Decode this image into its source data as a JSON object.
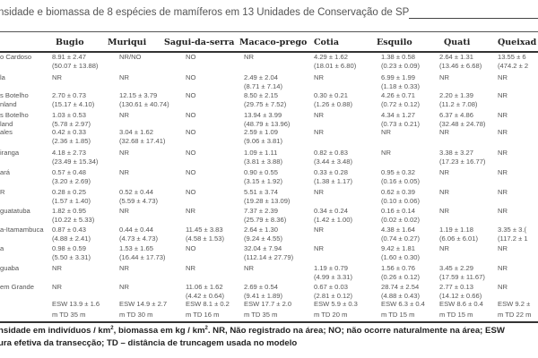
{
  "title": "nsidade e biomassa de 8 espécies de mamíferos  em 13 Unidades de Conservação de SP",
  "table": {
    "headers": [
      "Bugio",
      "Muriqui",
      "Sagui-da-serra",
      "Macaco-prego",
      "Cotia",
      "Esquilo",
      "Quati",
      "Queixad"
    ],
    "rows": [
      {
        "name": "o Cardoso",
        "cells": [
          [
            "8.91 ± 2.47",
            "(50.07 ± 13.88)"
          ],
          [
            "NR/NO"
          ],
          [
            "NO"
          ],
          [
            "NR"
          ],
          [
            "4.29 ± 1.62",
            "(18.01 ± 6.80)"
          ],
          [
            "1.38 ± 0.58",
            "(0.23 ± 0.09)"
          ],
          [
            "2.64 ± 1.31",
            "(13.46 ± 6.68)"
          ],
          [
            "13.55 ± 6",
            "(474.2 ± 2"
          ]
        ]
      },
      {
        "name": "la",
        "cells": [
          [
            "NR"
          ],
          [
            "NR"
          ],
          [
            "NO"
          ],
          [
            "2.49 ± 2.04",
            "(8.71 ± 7.14)"
          ],
          [
            "NR"
          ],
          [
            "6.99 ± 1.99",
            "(1.18 ± 0.33)"
          ],
          [
            "NR"
          ],
          [
            "NR"
          ]
        ]
      },
      {
        "name": "s Botelho\nnland",
        "cells": [
          [
            "2.70 ± 0.73",
            "(15.17 ± 4.10)"
          ],
          [
            "12.15 ± 3.79",
            "(130.61 ± 40.74)"
          ],
          [
            "NO"
          ],
          [
            "8.50 ± 2.15",
            "(29.75 ± 7.52)"
          ],
          [
            "0.30 ± 0.21",
            "(1.26 ± 0.88)"
          ],
          [
            "4.26 ± 0.71",
            "(0.72 ± 0.12)"
          ],
          [
            "2.20 ± 1.39",
            "(11.2 ± 7.08)"
          ],
          [
            "NR"
          ]
        ]
      },
      {
        "name": "s Botelho\nland",
        "cells": [
          [
            "1.03 ± 0.53",
            "(5.78 ± 2.97)"
          ],
          [
            "NR"
          ],
          [
            "NO"
          ],
          [
            "13.94 ± 3.99",
            "(48.79 ± 13.96)"
          ],
          [
            "NR"
          ],
          [
            "4.34 ± 1.27",
            "(0.73 ± 0.21)"
          ],
          [
            "6.37 ± 4.86",
            "(32.48 ± 24.78)"
          ],
          [
            "NR"
          ]
        ]
      },
      {
        "name": "ales",
        "cells": [
          [
            "0.42 ± 0.33",
            "(2.36 ± 1.85)"
          ],
          [
            "3.04 ± 1.62",
            "(32.68 ± 17.41)"
          ],
          [
            "NO"
          ],
          [
            "2.59 ± 1.09",
            "(9.06 ± 3.81)"
          ],
          [
            "NR"
          ],
          [
            "NR"
          ],
          [
            "NR"
          ],
          [
            "NR"
          ]
        ]
      },
      {
        "name": "iranga",
        "cells": [
          [
            "4.18 ± 2.73",
            "(23.49 ± 15.34)"
          ],
          [
            "NR"
          ],
          [
            "NO"
          ],
          [
            "1.09 ± 1.11",
            "(3.81 ± 3.88)"
          ],
          [
            "0.82 ± 0.83",
            "(3.44 ± 3.48)"
          ],
          [
            "NR"
          ],
          [
            "3.38 ± 3.27",
            "(17.23 ± 16.77)"
          ],
          [
            "NR"
          ]
        ]
      },
      {
        "name": "ará",
        "cells": [
          [
            "0.57 ± 0.48",
            "(3.20 ± 2.69)"
          ],
          [
            "NR"
          ],
          [
            "NO"
          ],
          [
            "0.90 ± 0.55",
            "(3.15 ± 1.92)"
          ],
          [
            "0.33 ± 0.28",
            "(1.38 ± 1.17)"
          ],
          [
            "0.95 ± 0.32",
            "(0.16 ± 0.05)"
          ],
          [
            "NR"
          ],
          [
            "NR"
          ]
        ]
      },
      {
        "name": "R",
        "cells": [
          [
            "0.28 ± 0.25",
            "(1.57 ± 1.40)"
          ],
          [
            "0.52 ± 0.44",
            "(5.59 ± 4.73)"
          ],
          [
            "NO"
          ],
          [
            "5.51 ± 3.74",
            "(19.28 ± 13.09)"
          ],
          [
            "NR"
          ],
          [
            "0.62 ± 0.39",
            "(0.10 ± 0.06)"
          ],
          [
            "NR"
          ],
          [
            "NR"
          ]
        ]
      },
      {
        "name": "guatatuba",
        "cells": [
          [
            "1.82 ± 0.95",
            "(10.22 ± 5.33)"
          ],
          [
            "NR"
          ],
          [
            "NR"
          ],
          [
            "7.37 ± 2.39",
            "(25.79 ± 8.36)"
          ],
          [
            "0.34 ± 0.24",
            "(1.42 ± 1.00)"
          ],
          [
            "0.16 ± 0.14",
            "(0.02 ± 0.02)"
          ],
          [
            "NR"
          ],
          [
            "NR"
          ]
        ]
      },
      {
        "name": "a-Itamambuca",
        "cells": [
          [
            "0.87 ± 0.43",
            "(4.88 ± 2.41)"
          ],
          [
            "0.44 ± 0.44",
            "(4.73 ± 4.73)"
          ],
          [
            "11.45 ± 3.83",
            "(4.58 ± 1.53)"
          ],
          [
            "2.64 ± 1.30",
            "(9.24 ± 4.55)"
          ],
          [
            "NR"
          ],
          [
            "4.38 ± 1.64",
            "(0.74 ± 0.27)"
          ],
          [
            "1.19 ± 1.18",
            "(6.06 ± 6.01)"
          ],
          [
            "3.35 ± 3.(",
            "(117.2 ± 1"
          ]
        ]
      },
      {
        "name": "a",
        "cells": [
          [
            "0.98 ± 0.59",
            "(5.50 ± 3.31)"
          ],
          [
            "1.53 ± 1.65",
            "(16.44 ± 17.73)"
          ],
          [
            "NO"
          ],
          [
            "32.04 ± 7.94",
            "(112.14 ± 27.79)"
          ],
          [
            "NR"
          ],
          [
            "9.42 ± 1.81",
            "(1.60 ± 0.30)"
          ],
          [
            "NR"
          ],
          [
            "NR"
          ]
        ]
      },
      {
        "name": "guaba",
        "cells": [
          [
            "NR"
          ],
          [
            "NR"
          ],
          [
            "NR"
          ],
          [
            "NR"
          ],
          [
            "1.19 ± 0.79",
            "(4.99 ± 3.31)"
          ],
          [
            "1.56 ± 0.76",
            "(0.26 ± 0.12)"
          ],
          [
            "3.45 ± 2.29",
            "(17.59 ± 11.67)"
          ],
          [
            "NR"
          ]
        ]
      },
      {
        "name": "em Grande",
        "cells": [
          [
            "NR"
          ],
          [
            "NR"
          ],
          [
            "11.06 ± 1.62",
            "(4.42 ± 0.64)"
          ],
          [
            "2.69 ± 0.54",
            "(9.41 ± 1.89)"
          ],
          [
            "0.67 ± 0.03",
            "(2.81 ± 0.12)"
          ],
          [
            "28.74 ± 2.54",
            "(4.88 ± 0.43)"
          ],
          [
            "2.77 ± 0.13",
            "(14.12 ± 0.66)"
          ],
          [
            "NR"
          ]
        ]
      }
    ],
    "esw": [
      [
        "ESW 13.9 ± 1.6",
        "m TD 35 m"
      ],
      [
        "ESW 14.9 ± 2.7",
        "m TD 30 m"
      ],
      [
        "ESW 8.1 ± 0.2",
        "m TD 16 m"
      ],
      [
        "ESW 17.7 ± 2.0",
        "m TD 35 m"
      ],
      [
        "ESW 5.9 ± 0.3",
        "m TD 20 m"
      ],
      [
        "ESW 6.3 ± 0.4",
        "m TD 15 m"
      ],
      [
        "ESW 8.6 ± 0.4",
        "m TD 15 m"
      ],
      [
        "ESW 9.2 ±",
        "m TD 22 m"
      ]
    ]
  },
  "footnote": {
    "line1_a": "nsidade em indivíduos / km",
    "line1_b": ", biomassa  em kg / km",
    "line1_c": ".  NR, Não registrado na área; NO; não ocorre naturalmente na área; ESW",
    "sup": "2",
    "line2": "ura efetiva da transecção; TD – distância  de truncagem usada no modelo"
  }
}
